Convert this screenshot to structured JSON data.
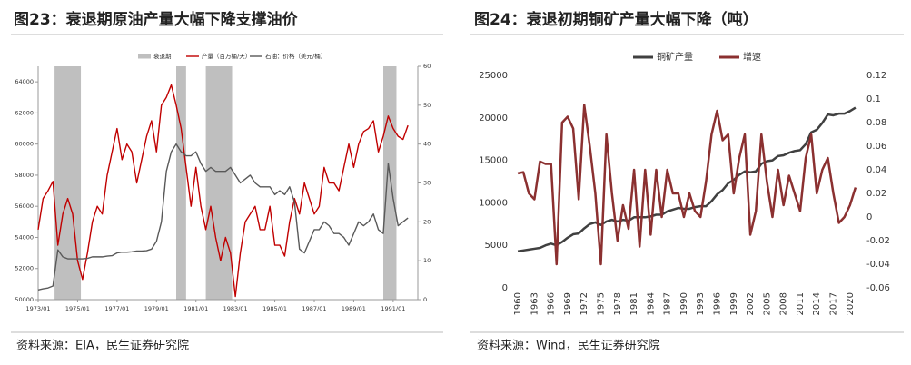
{
  "chart_data": [
    {
      "type": "line",
      "title": "图23：衰退期原油产量大幅下降支撑油价",
      "source": "资料来源：EIA，民生证券研究院",
      "x": [
        "1973/01",
        "1973/04",
        "1973/07",
        "1973/10",
        "1974/01",
        "1974/04",
        "1974/07",
        "1974/10",
        "1975/01",
        "1975/04",
        "1975/07",
        "1975/10",
        "1976/01",
        "1976/04",
        "1976/07",
        "1976/10",
        "1977/01",
        "1977/04",
        "1977/07",
        "1977/10",
        "1978/01",
        "1978/04",
        "1978/07",
        "1978/10",
        "1979/01",
        "1979/04",
        "1979/07",
        "1979/10",
        "1980/01",
        "1980/04",
        "1980/07",
        "1980/10",
        "1981/01",
        "1981/04",
        "1981/07",
        "1981/10",
        "1982/01",
        "1982/04",
        "1982/07",
        "1982/10",
        "1983/01",
        "1983/04",
        "1983/07",
        "1983/10",
        "1984/01",
        "1984/04",
        "1984/07",
        "1984/10",
        "1985/01",
        "1985/04",
        "1985/07",
        "1985/10",
        "1986/01",
        "1986/04",
        "1986/07",
        "1986/10",
        "1987/01",
        "1987/04",
        "1987/07",
        "1987/10",
        "1988/01",
        "1988/04",
        "1988/07",
        "1988/10",
        "1989/01",
        "1989/04",
        "1989/07",
        "1989/10",
        "1990/01",
        "1990/04",
        "1990/07",
        "1990/10",
        "1991/01",
        "1991/04",
        "1991/07",
        "1991/10"
      ],
      "xlim": [
        "1973/01",
        "1992/04"
      ],
      "xticks": [
        "1973/01",
        "1975/01",
        "1977/01",
        "1979/01",
        "1981/01",
        "1983/01",
        "1985/01",
        "1987/01",
        "1989/01",
        "1991/01"
      ],
      "ylim": [
        50000,
        65000
      ],
      "yticks": [
        50000,
        52000,
        54000,
        56000,
        58000,
        60000,
        62000,
        64000
      ],
      "y2lim": [
        0,
        60
      ],
      "y2ticks": [
        0,
        10,
        20,
        30,
        40,
        50,
        60
      ],
      "shaded_periods": {
        "name": "衰退期",
        "color": "#bfbfbf",
        "periods": [
          {
            "start": "1973/11",
            "end": "1975/03"
          },
          {
            "start": "1980/01",
            "end": "1980/07"
          },
          {
            "start": "1981/07",
            "end": "1982/11"
          },
          {
            "start": "1990/07",
            "end": "1991/03"
          }
        ]
      },
      "series": [
        {
          "name": "产量（百万桶/天）",
          "color": "#c00000",
          "axis": "y",
          "values": [
            54500,
            56500,
            57000,
            57600,
            53500,
            55500,
            56500,
            55500,
            52500,
            51300,
            53000,
            55000,
            56000,
            55500,
            58000,
            59500,
            61000,
            59000,
            60000,
            59500,
            57500,
            59000,
            60500,
            61500,
            59500,
            62500,
            63000,
            63800,
            62500,
            61000,
            58500,
            56000,
            58500,
            56000,
            54500,
            56000,
            54000,
            52500,
            54000,
            53000,
            50200,
            53000,
            55000,
            55500,
            56000,
            54500,
            54500,
            56000,
            53500,
            53500,
            52800,
            55000,
            56500,
            55500,
            57500,
            56500,
            55500,
            56000,
            58500,
            57500,
            57500,
            57000,
            58500,
            60000,
            58500,
            60000,
            60800,
            61000,
            61500,
            59500,
            60500,
            61800,
            61000,
            60500,
            60300,
            61200
          ]
        },
        {
          "name": "石油：价格（美元/桶）",
          "color": "#595959",
          "axis": "y2",
          "values": [
            2.5,
            2.8,
            3,
            3.5,
            12.8,
            11,
            10.5,
            10.5,
            10.5,
            10.5,
            10.6,
            11,
            11,
            11,
            11.2,
            11.3,
            12,
            12.2,
            12.2,
            12.3,
            12.5,
            12.5,
            12.6,
            13,
            15,
            20,
            33,
            38,
            40,
            38,
            37,
            37,
            38,
            35,
            33,
            34,
            33,
            33,
            33,
            34,
            32,
            30,
            31,
            32,
            30,
            29,
            29,
            29,
            27,
            28,
            27,
            29,
            25,
            13,
            12,
            15,
            18,
            18,
            20,
            19,
            17,
            17,
            16,
            14,
            17,
            20,
            19,
            20,
            22,
            18,
            17,
            35,
            26,
            19,
            20,
            21
          ]
        }
      ]
    },
    {
      "type": "line",
      "title": "图24：衰退初期铜矿产量大幅下降（吨）",
      "source": "资料来源：Wind，民生证券研究院",
      "x": [
        1960,
        1961,
        1962,
        1963,
        1964,
        1965,
        1966,
        1967,
        1968,
        1969,
        1970,
        1971,
        1972,
        1973,
        1974,
        1975,
        1976,
        1977,
        1978,
        1979,
        1980,
        1981,
        1982,
        1983,
        1984,
        1985,
        1986,
        1987,
        1988,
        1989,
        1990,
        1991,
        1992,
        1993,
        1994,
        1995,
        1996,
        1997,
        1998,
        1999,
        2000,
        2001,
        2002,
        2003,
        2004,
        2005,
        2006,
        2007,
        2008,
        2009,
        2010,
        2011,
        2012,
        2013,
        2014,
        2015,
        2016,
        2017,
        2018,
        2019,
        2020,
        2021
      ],
      "xlim": [
        1959,
        2022
      ],
      "xticks": [
        1960,
        1963,
        1966,
        1969,
        1972,
        1975,
        1978,
        1981,
        1984,
        1987,
        1990,
        1993,
        1996,
        1999,
        2002,
        2005,
        2008,
        2011,
        2014,
        2017,
        2020
      ],
      "ylim": [
        0,
        25000
      ],
      "yticks": [
        0,
        5000,
        10000,
        15000,
        20000,
        25000
      ],
      "y2lim": [
        -0.06,
        0.12
      ],
      "y2ticks": [
        -0.06,
        -0.04,
        -0.02,
        0,
        0.02,
        0.04,
        0.06,
        0.08,
        0.1,
        0.12
      ],
      "series": [
        {
          "name": "铜矿产量",
          "color": "#404040",
          "axis": "y",
          "values": [
            4300,
            4400,
            4500,
            4600,
            4700,
            5000,
            5200,
            5000,
            5400,
            5900,
            6300,
            6400,
            7000,
            7500,
            7700,
            7400,
            7800,
            8000,
            7800,
            8000,
            7900,
            8300,
            8300,
            8300,
            8400,
            8600,
            8600,
            9000,
            9200,
            9400,
            9300,
            9300,
            9500,
            9600,
            9600,
            10200,
            11000,
            11500,
            12300,
            12700,
            13300,
            13700,
            13600,
            13700,
            14600,
            14900,
            15000,
            15500,
            15600,
            15900,
            16100,
            16200,
            16900,
            18300,
            18600,
            19400,
            20400,
            20300,
            20500,
            20500,
            20800,
            21200
          ]
        },
        {
          "name": "增速",
          "color": "#8b3030",
          "axis": "y2",
          "values": [
            0.037,
            0.038,
            0.02,
            0.015,
            0.047,
            0.045,
            0.045,
            -0.04,
            0.08,
            0.085,
            0.075,
            0.015,
            0.095,
            0.06,
            0.02,
            -0.04,
            0.07,
            0.02,
            -0.02,
            0.01,
            -0.01,
            0.04,
            -0.025,
            0.04,
            -0.015,
            0.04,
            0,
            0.04,
            0.02,
            0.02,
            0,
            0.02,
            0.005,
            0,
            0.03,
            0.07,
            0.09,
            0.065,
            0.07,
            0.02,
            0.05,
            0.07,
            -0.015,
            0.005,
            0.07,
            0.03,
            0,
            0.04,
            0.01,
            0.035,
            0.02,
            0.005,
            0.05,
            0.07,
            0.02,
            0.04,
            0.05,
            0.02,
            -0.005,
            0,
            0.01,
            0.025
          ]
        }
      ]
    }
  ]
}
